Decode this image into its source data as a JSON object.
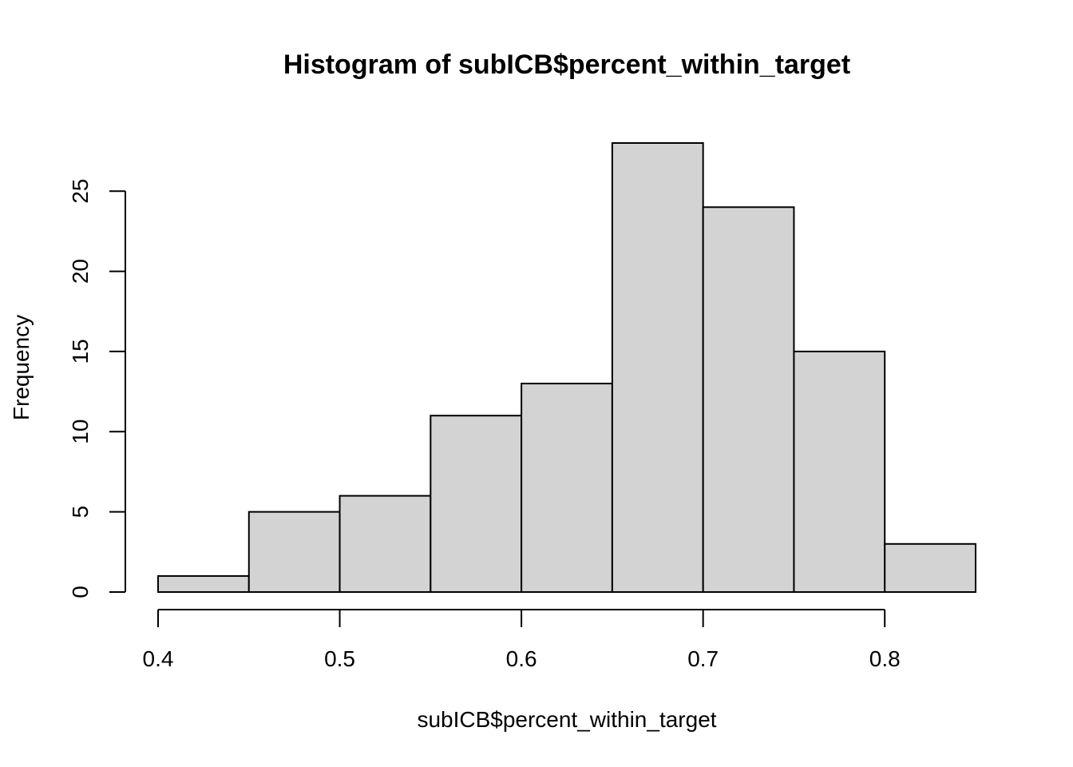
{
  "chart_data": {
    "type": "bar",
    "title": "Histogram of subICB$percent_within_target",
    "xlabel": "subICB$percent_within_target",
    "ylabel": "Frequency",
    "bins": [
      {
        "from": 0.4,
        "to": 0.45,
        "count": 1
      },
      {
        "from": 0.45,
        "to": 0.5,
        "count": 5
      },
      {
        "from": 0.5,
        "to": 0.55,
        "count": 6
      },
      {
        "from": 0.55,
        "to": 0.6,
        "count": 11
      },
      {
        "from": 0.6,
        "to": 0.65,
        "count": 13
      },
      {
        "from": 0.65,
        "to": 0.7,
        "count": 28
      },
      {
        "from": 0.7,
        "to": 0.75,
        "count": 24
      },
      {
        "from": 0.75,
        "to": 0.8,
        "count": 15
      },
      {
        "from": 0.8,
        "to": 0.85,
        "count": 3
      }
    ],
    "xticks": [
      "0.4",
      "0.5",
      "0.6",
      "0.7",
      "0.8"
    ],
    "yticks": [
      "0",
      "5",
      "10",
      "15",
      "20",
      "25"
    ],
    "xlim": [
      0.4,
      0.85
    ],
    "ylim": [
      0,
      28
    ],
    "bar_color": "#d3d3d3",
    "grid": false,
    "legend": "none"
  }
}
